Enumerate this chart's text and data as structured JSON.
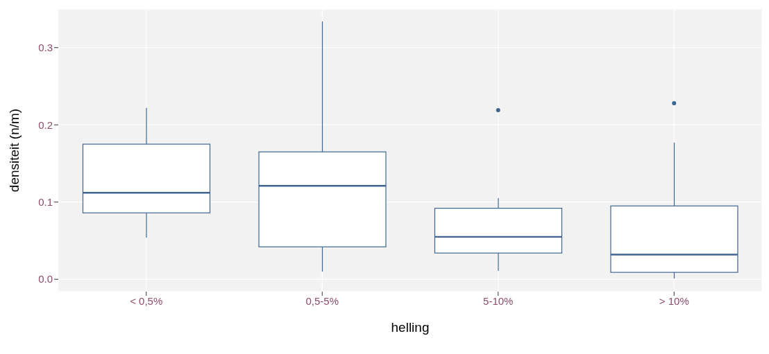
{
  "chart_data": {
    "type": "box",
    "xlabel": "helling",
    "ylabel": "densiteit (n/m)",
    "categories": [
      "< 0,5%",
      "0,5-5%",
      "5-10%",
      "> 10%"
    ],
    "color": "#3e6592",
    "boxes": [
      {
        "low": 0.054,
        "q1": 0.086,
        "median": 0.112,
        "q3": 0.175,
        "high": 0.222
      },
      {
        "low": 0.01,
        "q1": 0.042,
        "median": 0.121,
        "q3": 0.165,
        "high": 0.334
      },
      {
        "low": 0.011,
        "q1": 0.034,
        "median": 0.055,
        "q3": 0.092,
        "high": 0.105,
        "outliers": [
          0.219
        ]
      },
      {
        "low": 0.001,
        "q1": 0.009,
        "median": 0.032,
        "q3": 0.095,
        "high": 0.177,
        "outliers": [
          0.228
        ]
      }
    ],
    "ylim": [
      -0.016,
      0.35
    ],
    "yticks": [
      {
        "value": 0,
        "label": "0.0"
      },
      {
        "value": 0.1,
        "label": "0.1"
      },
      {
        "value": 0.2,
        "label": "0.2"
      },
      {
        "value": 0.3,
        "label": "0.3"
      }
    ],
    "grid": true
  }
}
